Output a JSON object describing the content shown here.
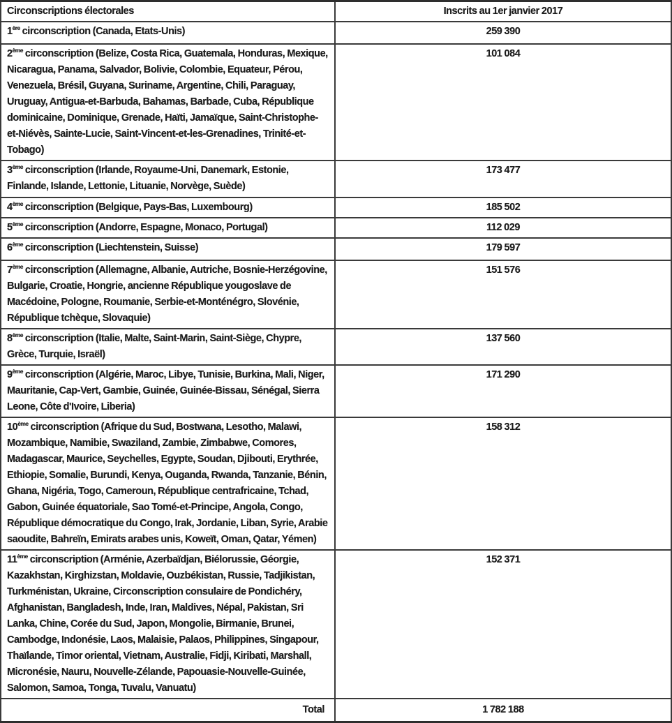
{
  "table": {
    "header": {
      "col1": "Circonscriptions électorales",
      "col2": "Inscrits au 1er janvier 2017"
    },
    "rows": [
      {
        "ordinal": "1",
        "suffix": "ère",
        "label": " circonscription (Canada, Etats-Unis)",
        "value": "259 390"
      },
      {
        "ordinal": "2",
        "suffix": "ème",
        "label": " circonscription (Belize, Costa Rica, Guatemala, Honduras, Mexique, Nicaragua, Panama, Salvador, Bolivie, Colombie, Equateur, Pérou, Venezuela, Brésil, Guyana, Suriname, Argentine, Chili, Paraguay, Uruguay, Antigua-et-Barbuda, Bahamas, Barbade, Cuba, République dominicaine, Dominique, Grenade, Haïti, Jamaïque, Saint-Christophe-et-Niévès, Sainte-Lucie, Saint-Vincent-et-les-Grenadines, Trinité-et-Tobago)",
        "value": "101 084"
      },
      {
        "ordinal": "3",
        "suffix": "ème",
        "label": " circonscription (Irlande, Royaume-Uni, Danemark, Estonie, Finlande, Islande, Lettonie, Lituanie, Norvège, Suède)",
        "value": "173 477"
      },
      {
        "ordinal": "4",
        "suffix": "ème",
        "label": " circonscription (Belgique, Pays-Bas, Luxembourg)",
        "value": "185 502"
      },
      {
        "ordinal": "5",
        "suffix": "ème",
        "label": " circonscription (Andorre, Espagne, Monaco, Portugal)",
        "value": "112 029"
      },
      {
        "ordinal": "6",
        "suffix": "ème",
        "label": " circonscription (Liechtenstein, Suisse)",
        "value": "179 597"
      },
      {
        "ordinal": "7",
        "suffix": "ème",
        "label": " circonscription (Allemagne, Albanie, Autriche, Bosnie-Herzégovine, Bulgarie, Croatie, Hongrie, ancienne République yougoslave de Macédoine, Pologne, Roumanie, Serbie-et-Monténégro, Slovénie, République tchèque, Slovaquie)",
        "value": "151 576"
      },
      {
        "ordinal": "8",
        "suffix": "ème",
        "label": " circonscription (Italie, Malte, Saint-Marin, Saint-Siège, Chypre, Grèce, Turquie, Israël)",
        "value": "137 560"
      },
      {
        "ordinal": "9",
        "suffix": "ème",
        "label": " circonscription (Algérie, Maroc, Libye, Tunisie, Burkina, Mali, Niger, Mauritanie, Cap-Vert, Gambie, Guinée, Guinée-Bissau, Sénégal, Sierra Leone, Côte d'Ivoire, Liberia)",
        "value": "171 290"
      },
      {
        "ordinal": "10",
        "suffix": "ème",
        "label": " circonscription (Afrique du Sud, Bostwana, Lesotho, Malawi, Mozambique, Namibie, Swaziland, Zambie, Zimbabwe, Comores, Madagascar, Maurice, Seychelles, Egypte, Soudan, Djibouti, Erythrée, Ethiopie, Somalie, Burundi, Kenya, Ouganda, Rwanda, Tanzanie, Bénin, Ghana, Nigéria, Togo, Cameroun, République centrafricaine, Tchad, Gabon, Guinée équatoriale, Sao Tomé-et-Principe, Angola, Congo, République démocratique du Congo, Irak, Jordanie, Liban, Syrie, Arabie saoudite, Bahreïn, Emirats arabes unis, Koweït, Oman, Qatar, Yémen)",
        "value": "158 312"
      },
      {
        "ordinal": "11",
        "suffix": "ème",
        "label": " circonscription (Arménie, Azerbaïdjan, Biélorussie, Géorgie, Kazakhstan, Kirghizstan, Moldavie, Ouzbékistan, Russie, Tadjikistan, Turkménistan, Ukraine, Circonscription consulaire de Pondichéry, Afghanistan, Bangladesh, Inde, Iran, Maldives, Népal, Pakistan, Sri Lanka, Chine, Corée du Sud, Japon, Mongolie, Birmanie, Brunei, Cambodge, Indonésie, Laos, Malaisie, Palaos, Philippines, Singapour, Thaïlande, Timor oriental, Vietnam, Australie, Fidji, Kiribati, Marshall, Micronésie, Nauru, Nouvelle-Zélande, Papouasie-Nouvelle-Guinée, Salomon, Samoa, Tonga, Tuvalu, Vanuatu)",
        "value": "152 371"
      }
    ],
    "total": {
      "label": "Total",
      "value": "1 782 188"
    }
  },
  "colors": {
    "text": "#1c1c1c",
    "border": "#3a3a3a",
    "background": "#ffffff"
  }
}
